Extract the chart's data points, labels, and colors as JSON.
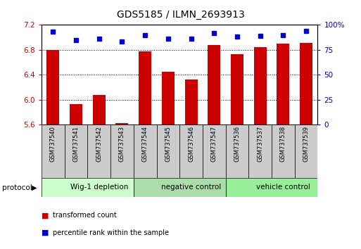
{
  "title": "GDS5185 / ILMN_2693913",
  "samples": [
    "GSM737540",
    "GSM737541",
    "GSM737542",
    "GSM737543",
    "GSM737544",
    "GSM737545",
    "GSM737546",
    "GSM737547",
    "GSM737536",
    "GSM737537",
    "GSM737538",
    "GSM737539"
  ],
  "bar_values": [
    6.8,
    5.93,
    6.07,
    5.62,
    6.77,
    6.45,
    6.32,
    6.88,
    6.73,
    6.84,
    6.9,
    6.91
  ],
  "percentile_values": [
    93,
    85,
    86,
    83,
    90,
    86,
    86,
    92,
    88,
    89,
    90,
    94
  ],
  "ylim_left": [
    5.6,
    7.2
  ],
  "ylim_right": [
    0,
    100
  ],
  "yticks_left": [
    5.6,
    6.0,
    6.4,
    6.8,
    7.2
  ],
  "yticks_right": [
    0,
    25,
    50,
    75,
    100
  ],
  "bar_color": "#cc0000",
  "dot_color": "#0000cc",
  "bar_bottom": 5.6,
  "group_starts": [
    0,
    4,
    8
  ],
  "group_ends": [
    4,
    8,
    12
  ],
  "group_labels": [
    "Wig-1 depletion",
    "negative control",
    "vehicle control"
  ],
  "group_colors": [
    "#ccffcc",
    "#aaddaa",
    "#99ee99"
  ],
  "legend_bar_label": "transformed count",
  "legend_dot_label": "percentile rank within the sample",
  "tick_color_left": "#cc0000",
  "tick_color_right": "#0000cc",
  "sample_box_color": "#cccccc",
  "title_fontsize": 10
}
